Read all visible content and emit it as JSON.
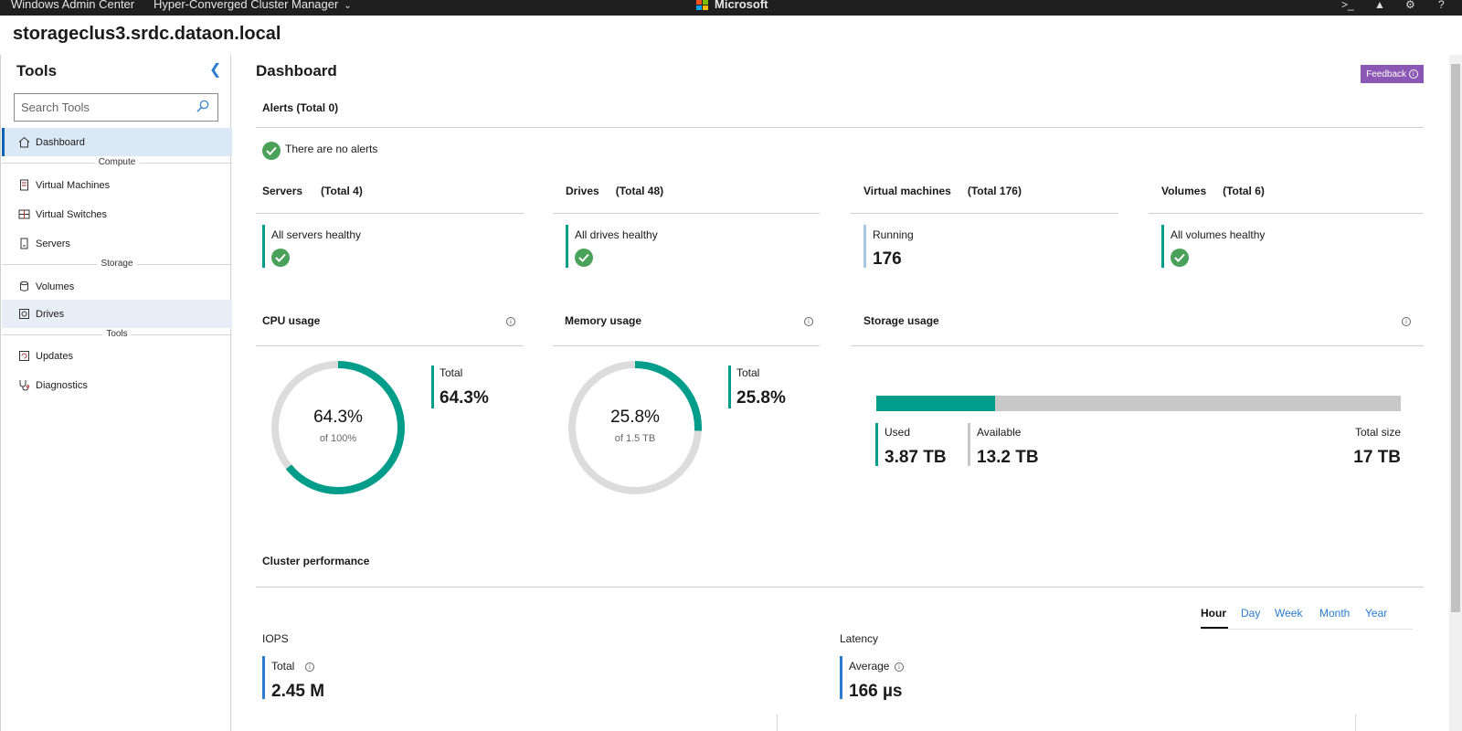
{
  "topbar": {
    "app_title": "Windows Admin Center",
    "app_sub": "Hyper-Converged Cluster Manager",
    "brand": "Microsoft",
    "icons": [
      "terminal-icon",
      "bell-icon",
      "gear-icon",
      "help-icon"
    ]
  },
  "server_name": "storageclus3.srdc.dataon.local",
  "sidebar": {
    "title": "Tools",
    "search_placeholder": "Search Tools",
    "groups": {
      "compute": "Compute",
      "storage": "Storage",
      "tools": "Tools"
    },
    "items": [
      {
        "label": "Dashboard",
        "icon": "home-icon"
      },
      {
        "label": "Virtual Machines",
        "icon": "vm-icon"
      },
      {
        "label": "Virtual Switches",
        "icon": "switch-icon"
      },
      {
        "label": "Servers",
        "icon": "server-icon"
      },
      {
        "label": "Volumes",
        "icon": "volume-icon"
      },
      {
        "label": "Drives",
        "icon": "drive-icon"
      },
      {
        "label": "Updates",
        "icon": "updates-icon"
      },
      {
        "label": "Diagnostics",
        "icon": "stethoscope-icon"
      }
    ]
  },
  "dashboard": {
    "title": "Dashboard",
    "feedback_label": "Feedback",
    "alerts": {
      "title": "Alerts (Total 0)",
      "message": "There are no alerts"
    },
    "servers": {
      "title": "Servers",
      "total": "(Total 4)",
      "status": "All servers healthy"
    },
    "drives": {
      "title": "Drives",
      "total": "(Total 48)",
      "status": "All drives healthy"
    },
    "vms": {
      "title": "Virtual machines",
      "total": "(Total 176)",
      "status": "Running",
      "count": "176"
    },
    "volumes": {
      "title": "Volumes",
      "total": "(Total 6)",
      "status": "All volumes healthy"
    },
    "cpu": {
      "title": "CPU usage",
      "center": "64.3%",
      "of": "of 100%",
      "total_label": "Total",
      "total_value": "64.3%",
      "fraction": 0.643
    },
    "memory": {
      "title": "Memory usage",
      "center": "25.8%",
      "of": "of 1.5 TB",
      "total_label": "Total",
      "total_value": "25.8%",
      "fraction": 0.258
    },
    "storage": {
      "title": "Storage usage",
      "used_label": "Used",
      "used_value": "3.87 TB",
      "available_label": "Available",
      "available_value": "13.2 TB",
      "total_label": "Total size",
      "total_value": "17 TB",
      "used_fraction": 0.227
    },
    "performance": {
      "title": "Cluster performance",
      "tabs": [
        "Hour",
        "Day",
        "Week",
        "Month",
        "Year"
      ],
      "active_tab": "Hour",
      "iops": {
        "title": "IOPS",
        "label": "Total",
        "value": "2.45 M"
      },
      "latency": {
        "title": "Latency",
        "label": "Average",
        "value": "166 µs"
      }
    }
  },
  "colors": {
    "accent": "#009e8a",
    "healthy": "#4aa25a",
    "link": "#2b7bd0",
    "active_nav": "#dbe8f5",
    "feedback": "#8a57b5"
  }
}
